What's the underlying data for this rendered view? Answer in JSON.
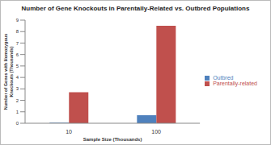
{
  "chart_data": {
    "type": "bar",
    "title": "Number of Gene Knockouts in Parentally-Related vs. Outbred Populations",
    "x_label": "Sample Size (Thousands)",
    "y_label": "Number of Genes with Homozygous Knockouts (Thousands)",
    "categories": [
      "10",
      "100"
    ],
    "series": [
      {
        "name": "Outbred",
        "color": "#4f81bd",
        "values": [
          0.05,
          0.7
        ]
      },
      {
        "name": "Parentally-related",
        "color": "#c0504d",
        "values": [
          2.7,
          8.5
        ]
      }
    ],
    "ylim": [
      0,
      9
    ],
    "yticks": [
      0,
      1,
      2,
      3,
      4,
      5,
      6,
      7,
      8,
      9
    ],
    "grid": false,
    "legend": "right"
  }
}
